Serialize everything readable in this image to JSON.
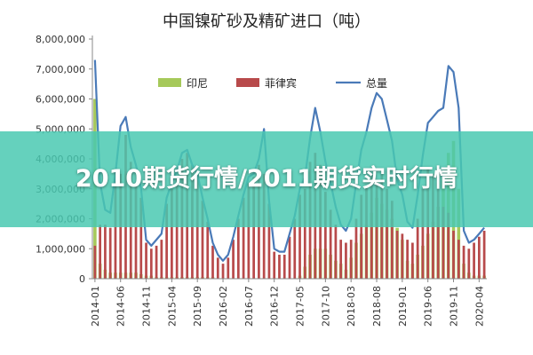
{
  "overlay": {
    "headline": "2010期货行情/2011期货实时行情"
  },
  "colors": {
    "indonesia": "#a6c95a",
    "philippines": "#b84a4b",
    "total": "#4a7ab8"
  },
  "chart_data": {
    "type": "bar",
    "title": "中国镍矿砂及精矿进口（吨）",
    "ylim": [
      0,
      8000000
    ],
    "y_ticks": [
      0,
      1000000,
      2000000,
      3000000,
      4000000,
      5000000,
      6000000,
      7000000,
      8000000
    ],
    "y_tick_labels": [
      "0",
      "1,000,000",
      "2,000,000",
      "3,000,000",
      "4,000,000",
      "5,000,000",
      "6,000,000",
      "7,000,000",
      "8,000,000"
    ],
    "x_tick_labels": [
      "2014-01",
      "2014-06",
      "2014-11",
      "2015-04",
      "2015-09",
      "2016-02",
      "2016-07",
      "2016-12",
      "2017-05",
      "2017-10",
      "2018-03",
      "2018-08",
      "2019-01",
      "2019-06",
      "2019-11",
      "2020-04"
    ],
    "x_tick_every": 5,
    "legend": {
      "position": "top",
      "entries": [
        "印尼",
        "菲律宾",
        "总量"
      ]
    },
    "grid": false,
    "categories": [
      "2014-01",
      "2014-02",
      "2014-03",
      "2014-04",
      "2014-05",
      "2014-06",
      "2014-07",
      "2014-08",
      "2014-09",
      "2014-10",
      "2014-11",
      "2014-12",
      "2015-01",
      "2015-02",
      "2015-03",
      "2015-04",
      "2015-05",
      "2015-06",
      "2015-07",
      "2015-08",
      "2015-09",
      "2015-10",
      "2015-11",
      "2015-12",
      "2016-01",
      "2016-02",
      "2016-03",
      "2016-04",
      "2016-05",
      "2016-06",
      "2016-07",
      "2016-08",
      "2016-09",
      "2016-10",
      "2016-11",
      "2016-12",
      "2017-01",
      "2017-02",
      "2017-03",
      "2017-04",
      "2017-05",
      "2017-06",
      "2017-07",
      "2017-08",
      "2017-09",
      "2017-10",
      "2017-11",
      "2017-12",
      "2018-01",
      "2018-02",
      "2018-03",
      "2018-04",
      "2018-05",
      "2018-06",
      "2018-07",
      "2018-08",
      "2018-09",
      "2018-10",
      "2018-11",
      "2018-12",
      "2019-01",
      "2019-02",
      "2019-03",
      "2019-04",
      "2019-05",
      "2019-06",
      "2019-07",
      "2019-08",
      "2019-09",
      "2019-10",
      "2019-11",
      "2019-12",
      "2020-01",
      "2020-02",
      "2020-03",
      "2020-04",
      "2020-05"
    ],
    "series": [
      {
        "name": "印尼",
        "kind": "bar",
        "values": [
          6000000,
          500000,
          300000,
          200000,
          200000,
          200000,
          200000,
          200000,
          200000,
          150000,
          100000,
          100000,
          50000,
          50000,
          50000,
          50000,
          50000,
          50000,
          50000,
          50000,
          50000,
          50000,
          50000,
          50000,
          0,
          0,
          0,
          0,
          0,
          0,
          0,
          0,
          0,
          0,
          0,
          0,
          0,
          0,
          0,
          0,
          100000,
          400000,
          800000,
          1000000,
          1000000,
          1000000,
          800000,
          600000,
          500000,
          300000,
          700000,
          1200000,
          1500000,
          1800000,
          2200000,
          2700000,
          2500000,
          2300000,
          2000000,
          1700000,
          1300000,
          600000,
          500000,
          800000,
          1100000,
          1500000,
          1900000,
          2400000,
          3300000,
          4200000,
          4600000,
          3000000,
          500000,
          200000,
          100000,
          100000,
          100000
        ]
      },
      {
        "name": "菲律宾",
        "kind": "bar",
        "values": [
          1100000,
          1800000,
          1800000,
          1700000,
          3300000,
          3500000,
          4800000,
          3900000,
          3200000,
          2700000,
          1200000,
          1000000,
          1100000,
          1300000,
          2500000,
          3000000,
          3400000,
          4000000,
          4200000,
          3800000,
          3400000,
          2600000,
          1900000,
          1100000,
          700000,
          500000,
          700000,
          1300000,
          2000000,
          2700000,
          3200000,
          3400000,
          3800000,
          3500000,
          2500000,
          900000,
          800000,
          800000,
          1400000,
          2000000,
          2800000,
          3000000,
          3900000,
          4200000,
          3800000,
          2900000,
          2300000,
          1800000,
          1300000,
          1200000,
          1300000,
          2000000,
          2800000,
          3100000,
          3500000,
          3300000,
          3500000,
          3000000,
          2600000,
          1600000,
          1500000,
          1300000,
          1200000,
          2000000,
          3000000,
          3700000,
          3500000,
          3200000,
          2400000,
          2200000,
          1600000,
          1300000,
          1100000,
          1000000,
          1200000,
          1400000,
          1600000
        ]
      },
      {
        "name": "总量",
        "kind": "line",
        "values": [
          7300000,
          3200000,
          2300000,
          2200000,
          3500000,
          5100000,
          5400000,
          4400000,
          3800000,
          3000000,
          1300000,
          1100000,
          1300000,
          1500000,
          2700000,
          3200000,
          3600000,
          4200000,
          4300000,
          3800000,
          3500000,
          2700000,
          2000000,
          1200000,
          800000,
          600000,
          800000,
          1400000,
          2100000,
          2800000,
          3400000,
          3500000,
          4000000,
          5000000,
          2600000,
          1000000,
          900000,
          900000,
          1500000,
          2100000,
          3000000,
          3400000,
          4700000,
          5700000,
          4900000,
          3900000,
          3200000,
          2400000,
          1800000,
          1600000,
          2000000,
          3200000,
          4300000,
          4900000,
          5700000,
          6200000,
          6000000,
          5300000,
          4600000,
          3300000,
          2800000,
          1900000,
          1700000,
          2800000,
          4100000,
          5200000,
          5400000,
          5600000,
          5700000,
          7100000,
          6900000,
          5700000,
          1600000,
          1200000,
          1300000,
          1500000,
          1700000
        ]
      }
    ]
  }
}
